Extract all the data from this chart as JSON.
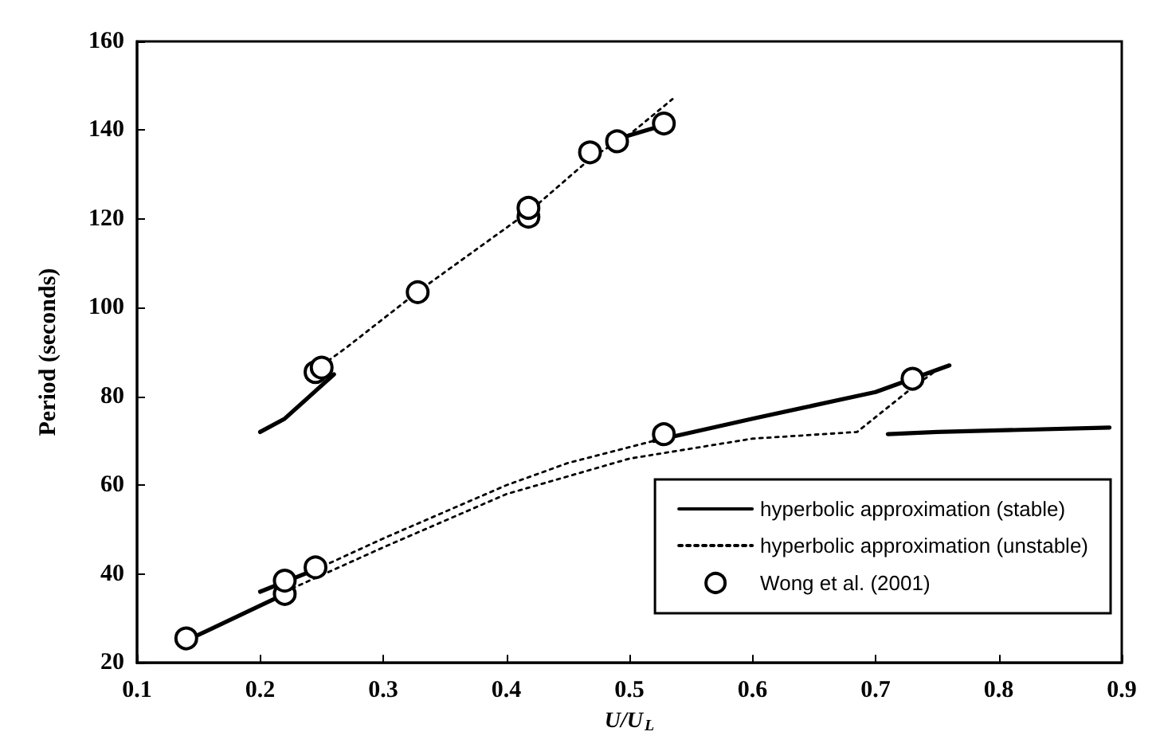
{
  "chart_data": {
    "type": "line",
    "xlabel": "U/U$_{L}$",
    "ylabel": "Period (seconds)",
    "xlim": [
      0.1,
      0.9
    ],
    "xticks": [
      0.1,
      0.2,
      0.3,
      0.4,
      0.5,
      0.6,
      0.7,
      0.8,
      0.9
    ],
    "ylim": [
      20,
      160
    ],
    "yticks": [
      20,
      40,
      60,
      80,
      100,
      120,
      140,
      160
    ],
    "grid": false,
    "legend": "bottom right",
    "marker": "none",
    "series": [
      {
        "name": "hyperbolic approximation (stable)",
        "line_style": "solid",
        "color": "#000000",
        "x": [
          0.2,
          0.22,
          0.24,
          0.26
        ],
        "values": [
          72,
          75,
          80,
          85
        ]
      },
      {
        "line_style": "solid",
        "color": "#000000",
        "x": [
          0.49,
          0.52
        ],
        "values": [
          138,
          140.5
        ]
      },
      {
        "line_style": "solid",
        "color": "#000000",
        "x": [
          0.14,
          0.22
        ],
        "values": [
          25,
          35.5
        ]
      },
      {
        "line_style": "solid",
        "color": "#000000",
        "x": [
          0.2,
          0.245
        ],
        "values": [
          36,
          41
        ]
      },
      {
        "line_style": "solid",
        "color": "#000000",
        "x": [
          0.52,
          0.6,
          0.7,
          0.76
        ],
        "values": [
          70,
          75,
          81,
          87
        ]
      },
      {
        "line_style": "solid",
        "color": "#000000",
        "x": [
          0.71,
          0.75,
          0.89
        ],
        "values": [
          71.5,
          72,
          73
        ]
      },
      {
        "name": "hyperbolic approximation (unstable)",
        "line_style": "dotted",
        "color": "#000000",
        "x": [
          0.25,
          0.27,
          0.33,
          0.42,
          0.47,
          0.5,
          0.535
        ],
        "values": [
          87,
          91,
          104,
          122,
          134,
          139,
          147
        ]
      },
      {
        "line_style": "dotted",
        "color": "#000000",
        "x": [
          0.22,
          0.3,
          0.4,
          0.5,
          0.6,
          0.685,
          0.73,
          0.75
        ],
        "values": [
          36,
          46,
          58,
          66,
          70.5,
          72,
          82,
          86
        ]
      },
      {
        "line_style": "dotted",
        "color": "#000000",
        "x": [
          0.245,
          0.3,
          0.4,
          0.45,
          0.52
        ],
        "values": [
          41,
          48,
          60,
          65,
          70
        ]
      },
      {
        "name": "Wong et al. (2001)",
        "type": "scatter",
        "marker": "circle",
        "color": "#000000",
        "x": [
          0.14,
          0.22,
          0.22,
          0.245,
          0.245,
          0.25,
          0.328,
          0.418,
          0.418,
          0.468,
          0.49,
          0.528,
          0.528,
          0.73
        ],
        "values": [
          25.5,
          35.5,
          38.5,
          41.5,
          85.5,
          86.5,
          103.5,
          120.5,
          122.5,
          135,
          137.5,
          141.5,
          71.5,
          84
        ]
      }
    ]
  }
}
